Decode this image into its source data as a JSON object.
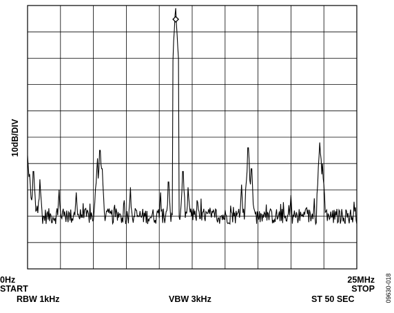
{
  "chart_data": {
    "type": "line",
    "ylabel": "10dB/DIV",
    "x_start_label": "0Hz",
    "x_start_sub": "START",
    "x_stop_label": "25MHz",
    "x_stop_sub": "STOP",
    "rbw": "RBW 1kHz",
    "vbw": "VBW 3kHz",
    "sweep": "ST 50 SEC",
    "figure_id": "09630-018",
    "xlim": [
      0,
      25
    ],
    "x_unit": "MHz",
    "ylim": [
      -100,
      0
    ],
    "y_divisions": 10,
    "x_divisions": 10,
    "noise_floor_db": -80,
    "marker": {
      "x": 11.25,
      "y": 0
    },
    "series": [
      {
        "peaks": [
          {
            "x": 0.0,
            "y": -57
          },
          {
            "x": 0.15,
            "y": -64
          },
          {
            "x": 0.45,
            "y": -63
          },
          {
            "x": 0.95,
            "y": -66
          },
          {
            "x": 2.4,
            "y": -70
          },
          {
            "x": 3.7,
            "y": -71
          },
          {
            "x": 5.3,
            "y": -58
          },
          {
            "x": 5.5,
            "y": -55
          },
          {
            "x": 5.65,
            "y": -62
          },
          {
            "x": 7.8,
            "y": -69
          },
          {
            "x": 10.1,
            "y": -71
          },
          {
            "x": 10.7,
            "y": -67
          },
          {
            "x": 11.25,
            "y": -1
          },
          {
            "x": 11.8,
            "y": -63
          },
          {
            "x": 12.2,
            "y": -69
          },
          {
            "x": 16.25,
            "y": -68
          },
          {
            "x": 16.75,
            "y": -54
          },
          {
            "x": 17.0,
            "y": -62
          },
          {
            "x": 20.0,
            "y": -72
          },
          {
            "x": 22.2,
            "y": -52
          },
          {
            "x": 22.4,
            "y": -60
          }
        ]
      }
    ]
  }
}
